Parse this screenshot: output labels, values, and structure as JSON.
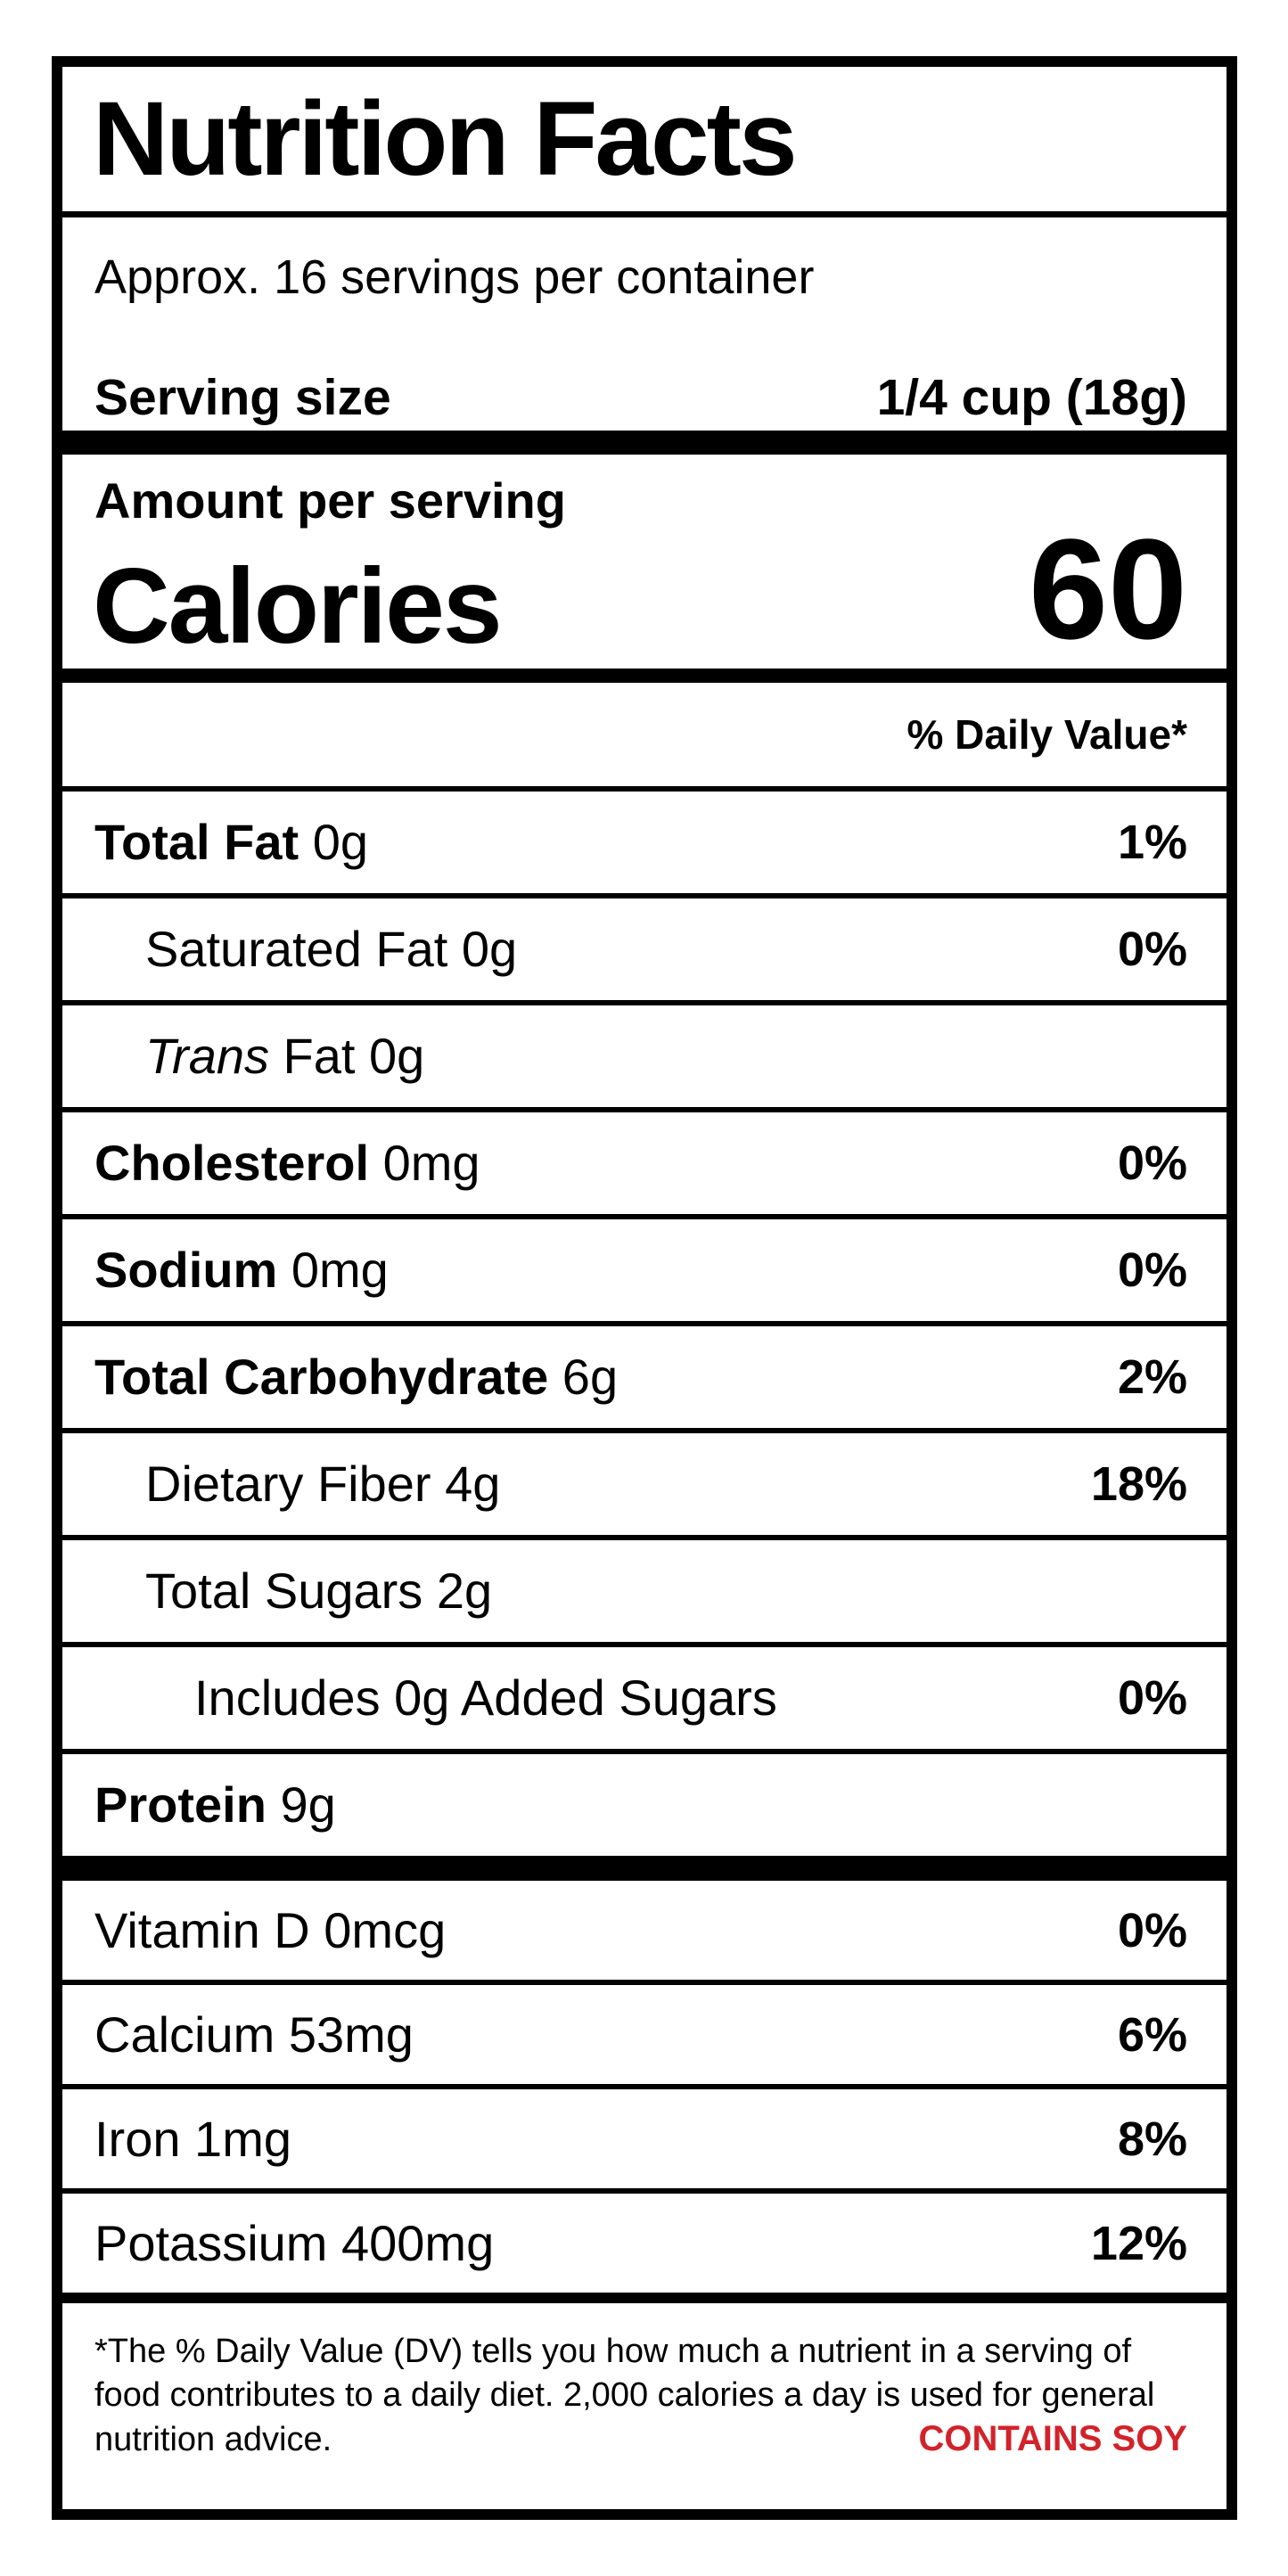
{
  "label": {
    "title": "Nutrition Facts",
    "servings_per_container": "Approx. 16 servings per container",
    "serving_size_label": "Serving size",
    "serving_size_value": "1/4 cup (18g)",
    "amount_per_serving": "Amount per serving",
    "calories_label": "Calories",
    "calories_value": "60",
    "daily_value_header": "% Daily Value*"
  },
  "nutrient_rows": [
    {
      "name": "Total Fat",
      "amount": "0g",
      "bold": true,
      "indent": 0,
      "dv": "1%"
    },
    {
      "name": "Saturated Fat",
      "amount": "0g",
      "indent": 1,
      "dv": "0%"
    },
    {
      "name": "Trans",
      "amount": "Fat 0g",
      "italic": true,
      "indent": 1,
      "dv": ""
    },
    {
      "name": "Cholesterol",
      "amount": "0mg",
      "bold": true,
      "indent": 0,
      "dv": "0%"
    },
    {
      "name": "Sodium",
      "amount": "0mg",
      "bold": true,
      "indent": 0,
      "dv": "0%"
    },
    {
      "name": "Total Carbohydrate",
      "amount": "6g",
      "bold": true,
      "indent": 0,
      "dv": "2%"
    },
    {
      "name": "Dietary Fiber",
      "amount": "4g",
      "indent": 1,
      "dv": "18%"
    },
    {
      "name": "Total Sugars",
      "amount": "2g",
      "indent": 1,
      "dv": ""
    },
    {
      "name": "Includes 0g Added Sugars",
      "amount": "",
      "indent": 2,
      "dv": "0%"
    },
    {
      "name": "Protein",
      "amount": "9g",
      "bold": true,
      "indent": 0,
      "dv": ""
    }
  ],
  "vitamin_rows": [
    {
      "name": "Vitamin D",
      "amount": "0mcg",
      "indent": 0,
      "dv": "0%"
    },
    {
      "name": "Calcium",
      "amount": "53mg",
      "indent": 0,
      "dv": "6%"
    },
    {
      "name": "Iron",
      "amount": "1mg",
      "indent": 0,
      "dv": "8%"
    },
    {
      "name": "Potassium",
      "amount": "400mg",
      "indent": 0,
      "dv": "12%"
    }
  ],
  "footnote": {
    "line1": "*The % Daily Value (DV) tells you how much a nutrient in a serving of",
    "line2": "food contributes to a daily diet. 2,000 calories a day is used for general",
    "line3": "nutrition advice.",
    "allergen": "CONTAINS SOY"
  },
  "colors": {
    "allergen_red": "#d2232a",
    "text": "#000000",
    "background": "#ffffff"
  }
}
